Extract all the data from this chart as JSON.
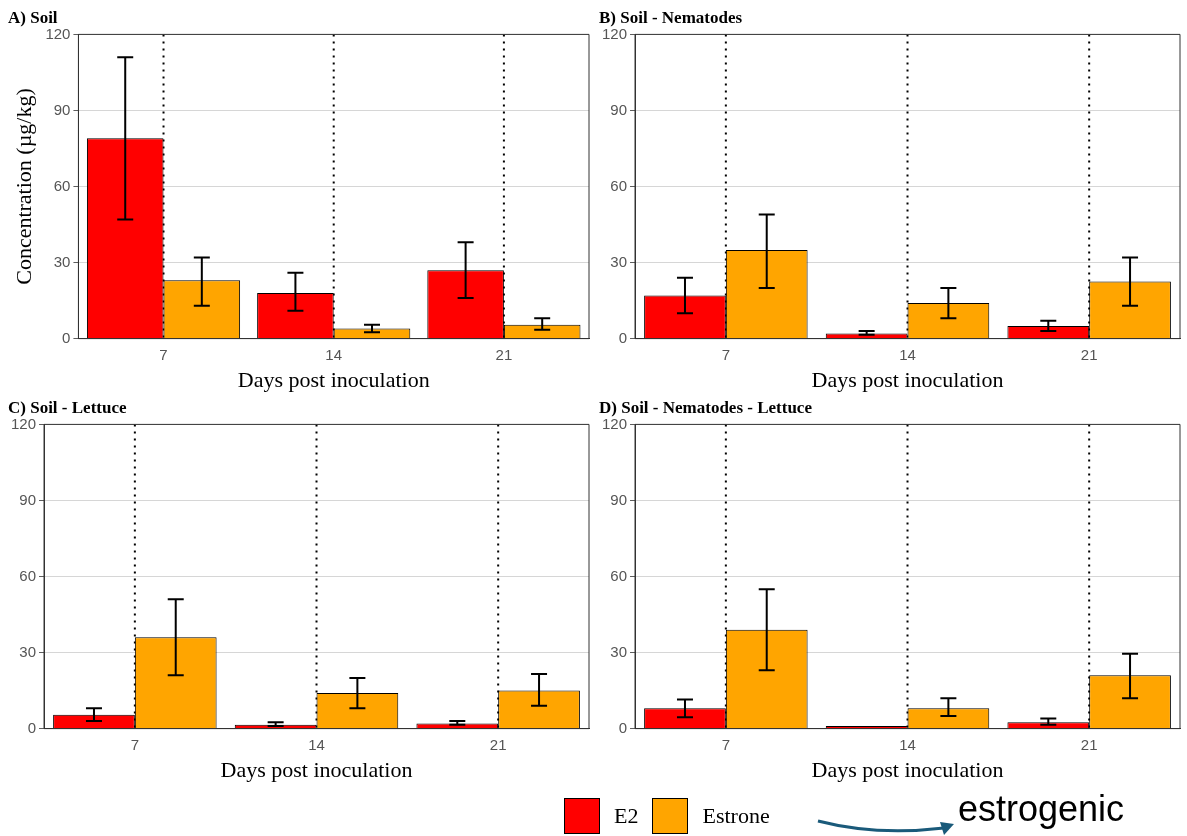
{
  "chart_data": [
    {
      "type": "bar",
      "title": "A) Soil",
      "xlabel": "Days post inoculation",
      "ylabel": "Concentration (µg/kg)",
      "categories": [
        "7",
        "14",
        "21"
      ],
      "ylim": [
        0,
        120
      ],
      "yticks": [
        0,
        30,
        60,
        90,
        120
      ],
      "grid": "y",
      "legend": "bottom",
      "series": [
        {
          "name": "E2",
          "color": "#ff0000",
          "values": [
            79,
            18,
            27
          ],
          "errors": [
            [
              47,
              111
            ],
            [
              11,
              26
            ],
            [
              16,
              38
            ]
          ]
        },
        {
          "name": "Estrone",
          "color": "#ffa500",
          "values": [
            23,
            4,
            5.5
          ],
          "errors": [
            [
              13,
              32
            ],
            [
              2.5,
              5.5
            ],
            [
              3.5,
              8
            ]
          ]
        }
      ],
      "ref_lines": [
        {
          "axis": "x",
          "value": "7",
          "color": "#000000",
          "line_style": "dotted"
        },
        {
          "axis": "x",
          "value": "14",
          "color": "#000000",
          "line_style": "dotted"
        },
        {
          "axis": "x",
          "value": "21",
          "color": "#000000",
          "line_style": "dotted"
        }
      ]
    },
    {
      "type": "bar",
      "title": "B) Soil - Nematodes",
      "xlabel": "Days post inoculation",
      "categories": [
        "7",
        "14",
        "21"
      ],
      "ylim": [
        0,
        120
      ],
      "yticks": [
        0,
        30,
        60,
        90,
        120
      ],
      "grid": "y",
      "legend": "bottom",
      "series": [
        {
          "name": "E2",
          "color": "#ff0000",
          "values": [
            17,
            2,
            5
          ],
          "errors": [
            [
              10,
              24
            ],
            [
              1.5,
              3
            ],
            [
              3,
              7
            ]
          ]
        },
        {
          "name": "Estrone",
          "color": "#ffa500",
          "values": [
            35,
            14,
            22.5
          ],
          "errors": [
            [
              20,
              49
            ],
            [
              8,
              20
            ],
            [
              13,
              32
            ]
          ]
        }
      ],
      "ref_lines": [
        {
          "axis": "x",
          "value": "7",
          "color": "#000000",
          "line_style": "dotted"
        },
        {
          "axis": "x",
          "value": "14",
          "color": "#000000",
          "line_style": "dotted"
        },
        {
          "axis": "x",
          "value": "21",
          "color": "#000000",
          "line_style": "dotted"
        }
      ]
    },
    {
      "type": "bar",
      "title": "C) Soil - Lettuce",
      "xlabel": "Days post inoculation",
      "categories": [
        "7",
        "14",
        "21"
      ],
      "ylim": [
        0,
        120
      ],
      "yticks": [
        0,
        30,
        60,
        90,
        120
      ],
      "grid": "y",
      "legend": "bottom",
      "series": [
        {
          "name": "E2",
          "color": "#ff0000",
          "values": [
            5.5,
            1.5,
            2
          ],
          "errors": [
            [
              3,
              8
            ],
            [
              1,
              2.5
            ],
            [
              1.5,
              3
            ]
          ]
        },
        {
          "name": "Estrone",
          "color": "#ffa500",
          "values": [
            36,
            14,
            15
          ],
          "errors": [
            [
              21,
              51
            ],
            [
              8,
              20
            ],
            [
              9,
              21.5
            ]
          ]
        }
      ],
      "ref_lines": [
        {
          "axis": "x",
          "value": "7",
          "color": "#000000",
          "line_style": "dotted"
        },
        {
          "axis": "x",
          "value": "14",
          "color": "#000000",
          "line_style": "dotted"
        },
        {
          "axis": "x",
          "value": "21",
          "color": "#000000",
          "line_style": "dotted"
        }
      ]
    },
    {
      "type": "bar",
      "title": "D) Soil - Nematodes - Lettuce",
      "xlabel": "Days post inoculation",
      "categories": [
        "7",
        "14",
        "21"
      ],
      "ylim": [
        0,
        120
      ],
      "yticks": [
        0,
        30,
        60,
        90,
        120
      ],
      "grid": "y",
      "legend": "bottom",
      "annotations": [
        "estrogenic"
      ],
      "series": [
        {
          "name": "E2",
          "color": "#ff0000",
          "values": [
            8,
            1,
            2.5
          ],
          "errors": [
            [
              4.5,
              11.5
            ],
            null,
            [
              1.5,
              4
            ]
          ]
        },
        {
          "name": "Estrone",
          "color": "#ffa500",
          "values": [
            39,
            8,
            21
          ],
          "errors": [
            [
              23,
              55
            ],
            [
              5,
              12
            ],
            [
              12,
              29.5
            ]
          ]
        }
      ],
      "ref_lines": [
        {
          "axis": "x",
          "value": "7",
          "color": "#000000",
          "line_style": "dotted"
        },
        {
          "axis": "x",
          "value": "14",
          "color": "#000000",
          "line_style": "dotted"
        },
        {
          "axis": "x",
          "value": "21",
          "color": "#000000",
          "line_style": "dotted"
        }
      ]
    }
  ]
}
